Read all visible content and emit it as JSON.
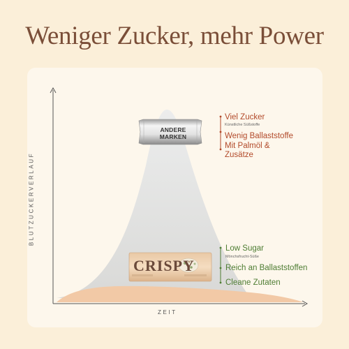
{
  "headline": "Weniger Zucker, mehr Power",
  "axes": {
    "y_label": "BLUTZUCKERVERLAUF",
    "x_label": "ZEIT"
  },
  "others": {
    "bar_label_line1": "ANDERE",
    "bar_label_line2": "MARKEN",
    "points": {
      "sugar": "Viel Zucker",
      "sweeteners": "Künstliche Süßstoffe",
      "fiber": "Wenig Ballaststoffe",
      "additives_line1": "Mit Palmöl &",
      "additives_line2": "Zusätze"
    }
  },
  "crispy": {
    "brand": "CRISPY",
    "points": {
      "sugar": "Low Sugar",
      "sweetener": "Mönchsfrucht-Süße",
      "fiber": "Reich an Ballaststoffen",
      "ingredients": "Cleane Zutaten"
    }
  },
  "colors": {
    "background": "#fbefd9",
    "card": "#fdf7ec",
    "headline": "#7a4e38",
    "others_accent": "#b24a2a",
    "crispy_accent": "#4e7d33",
    "high_curve": "#e3e3e2",
    "low_curve": "#f2c9a6"
  },
  "icons": [
    "arrow-up-icon",
    "arrow-right-icon",
    "candy-bar-wrapper-icon",
    "crispy-bar-icon"
  ]
}
